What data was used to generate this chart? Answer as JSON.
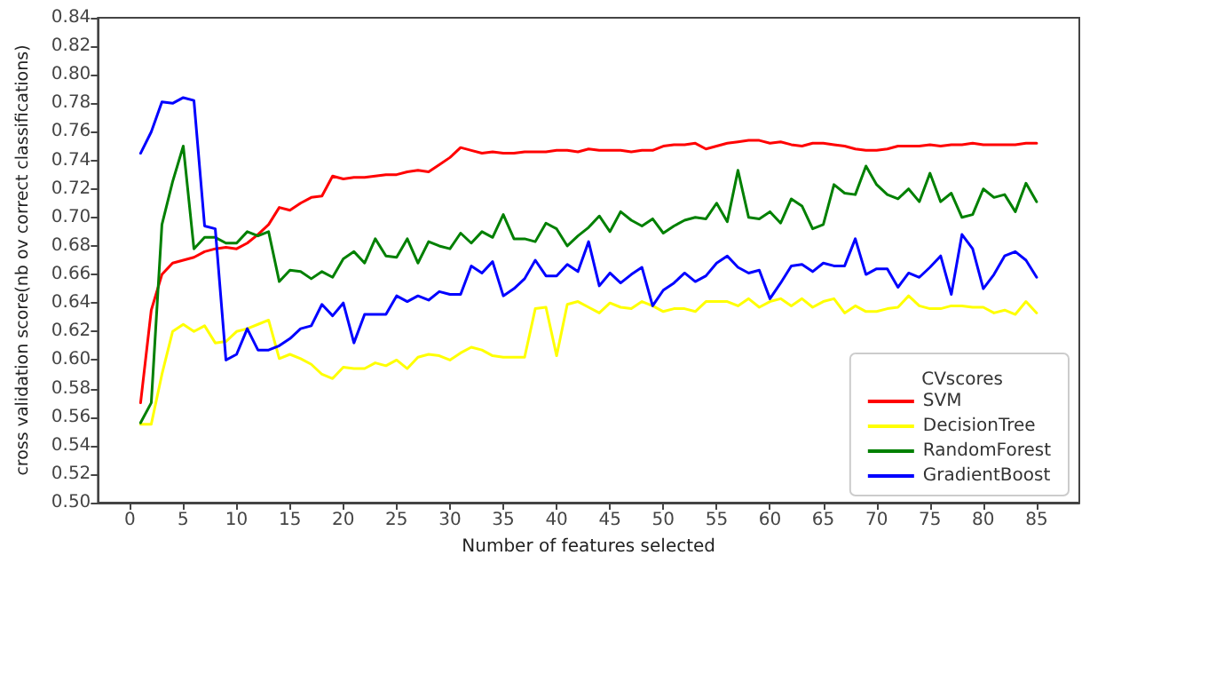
{
  "chart_data": {
    "type": "line",
    "xlabel": "Number of features selected",
    "ylabel": "cross validation score(nb ov correct classifications)",
    "legend_title": "CVscores",
    "legend": "bottom right",
    "grid": false,
    "marker": "none",
    "line_style": "solid",
    "x": [
      1,
      2,
      3,
      4,
      5,
      6,
      7,
      8,
      9,
      10,
      11,
      12,
      13,
      14,
      15,
      16,
      17,
      18,
      19,
      20,
      21,
      22,
      23,
      24,
      25,
      26,
      27,
      28,
      29,
      30,
      31,
      32,
      33,
      34,
      35,
      36,
      37,
      38,
      39,
      40,
      41,
      42,
      43,
      44,
      45,
      46,
      47,
      48,
      49,
      50,
      51,
      52,
      53,
      54,
      55,
      56,
      57,
      58,
      59,
      60,
      61,
      62,
      63,
      64,
      65,
      66,
      67,
      68,
      69,
      70,
      71,
      72,
      73,
      74,
      75,
      76,
      77,
      78,
      79,
      80,
      81,
      82,
      83,
      84,
      85
    ],
    "xlim": [
      -3,
      89
    ],
    "xticks": [
      0,
      5,
      10,
      15,
      20,
      25,
      30,
      35,
      40,
      45,
      50,
      55,
      60,
      65,
      70,
      75,
      80,
      85
    ],
    "ylim": [
      0.5,
      0.84
    ],
    "yticks": [
      {
        "value": 0.5,
        "label": "0.50"
      },
      0.52,
      0.54,
      0.56,
      0.58,
      {
        "value": 0.6,
        "label": "0.60"
      },
      0.62,
      0.64,
      0.66,
      0.68,
      {
        "value": 0.7,
        "label": "0.70"
      },
      0.72,
      0.74,
      0.76,
      0.78,
      {
        "value": 0.8,
        "label": "0.80"
      },
      0.82,
      0.84
    ],
    "series": [
      {
        "name": "SVM",
        "color": "#ff0000",
        "values": [
          0.57,
          0.635,
          0.66,
          0.668,
          0.67,
          0.672,
          0.676,
          0.678,
          0.679,
          0.678,
          0.682,
          0.688,
          0.695,
          0.707,
          0.705,
          0.71,
          0.714,
          0.715,
          0.729,
          0.727,
          0.728,
          0.728,
          0.729,
          0.73,
          0.73,
          0.732,
          0.733,
          0.732,
          0.737,
          0.742,
          0.749,
          0.747,
          0.745,
          0.746,
          0.745,
          0.745,
          0.746,
          0.746,
          0.746,
          0.747,
          0.747,
          0.746,
          0.748,
          0.747,
          0.747,
          0.747,
          0.746,
          0.747,
          0.747,
          0.75,
          0.751,
          0.751,
          0.752,
          0.748,
          0.75,
          0.752,
          0.753,
          0.754,
          0.754,
          0.752,
          0.753,
          0.751,
          0.75,
          0.752,
          0.752,
          0.751,
          0.75,
          0.748,
          0.747,
          0.747,
          0.748,
          0.75,
          0.75,
          0.75,
          0.751,
          0.75,
          0.751,
          0.751,
          0.752,
          0.751,
          0.751,
          0.751,
          0.751,
          0.752,
          0.752
        ]
      },
      {
        "name": "DecisionTree",
        "color": "#ffff00",
        "values": [
          0.555,
          0.555,
          0.59,
          0.62,
          0.625,
          0.62,
          0.624,
          0.612,
          0.613,
          0.62,
          0.622,
          0.625,
          0.628,
          0.601,
          0.604,
          0.601,
          0.597,
          0.59,
          0.587,
          0.595,
          0.594,
          0.594,
          0.598,
          0.596,
          0.6,
          0.594,
          0.602,
          0.604,
          0.603,
          0.6,
          0.605,
          0.609,
          0.607,
          0.603,
          0.602,
          0.602,
          0.602,
          0.636,
          0.637,
          0.603,
          0.639,
          0.641,
          0.637,
          0.633,
          0.64,
          0.637,
          0.636,
          0.641,
          0.638,
          0.634,
          0.636,
          0.636,
          0.634,
          0.641,
          0.641,
          0.641,
          0.638,
          0.643,
          0.637,
          0.641,
          0.643,
          0.638,
          0.643,
          0.637,
          0.641,
          0.643,
          0.633,
          0.638,
          0.634,
          0.634,
          0.636,
          0.637,
          0.645,
          0.638,
          0.636,
          0.636,
          0.638,
          0.638,
          0.637,
          0.637,
          0.633,
          0.635,
          0.632,
          0.641,
          0.633
        ]
      },
      {
        "name": "RandomForest",
        "color": "#008000",
        "values": [
          0.556,
          0.57,
          0.695,
          0.725,
          0.75,
          0.678,
          0.686,
          0.686,
          0.682,
          0.682,
          0.69,
          0.687,
          0.69,
          0.655,
          0.663,
          0.662,
          0.657,
          0.662,
          0.658,
          0.671,
          0.676,
          0.668,
          0.685,
          0.673,
          0.672,
          0.685,
          0.668,
          0.683,
          0.68,
          0.678,
          0.689,
          0.682,
          0.69,
          0.686,
          0.702,
          0.685,
          0.685,
          0.683,
          0.696,
          0.692,
          0.68,
          0.687,
          0.693,
          0.701,
          0.69,
          0.704,
          0.698,
          0.694,
          0.699,
          0.689,
          0.694,
          0.698,
          0.7,
          0.699,
          0.71,
          0.697,
          0.733,
          0.7,
          0.699,
          0.704,
          0.696,
          0.713,
          0.708,
          0.692,
          0.695,
          0.723,
          0.717,
          0.716,
          0.736,
          0.723,
          0.716,
          0.713,
          0.72,
          0.711,
          0.731,
          0.711,
          0.717,
          0.7,
          0.702,
          0.72,
          0.714,
          0.716,
          0.704,
          0.724,
          0.711
        ]
      },
      {
        "name": "GradientBoost",
        "color": "#0000ff",
        "values": [
          0.745,
          0.76,
          0.781,
          0.78,
          0.784,
          0.782,
          0.694,
          0.692,
          0.6,
          0.604,
          0.622,
          0.607,
          0.607,
          0.61,
          0.615,
          0.622,
          0.624,
          0.639,
          0.631,
          0.64,
          0.612,
          0.632,
          0.632,
          0.632,
          0.645,
          0.641,
          0.645,
          0.642,
          0.648,
          0.646,
          0.646,
          0.666,
          0.661,
          0.669,
          0.645,
          0.65,
          0.657,
          0.67,
          0.659,
          0.659,
          0.667,
          0.662,
          0.683,
          0.652,
          0.661,
          0.654,
          0.66,
          0.665,
          0.638,
          0.649,
          0.654,
          0.661,
          0.655,
          0.659,
          0.668,
          0.673,
          0.665,
          0.661,
          0.663,
          0.643,
          0.654,
          0.666,
          0.667,
          0.662,
          0.668,
          0.666,
          0.666,
          0.685,
          0.66,
          0.664,
          0.664,
          0.651,
          0.661,
          0.658,
          0.665,
          0.673,
          0.646,
          0.688,
          0.678,
          0.65,
          0.66,
          0.673,
          0.676,
          0.67,
          0.658
        ]
      }
    ]
  }
}
